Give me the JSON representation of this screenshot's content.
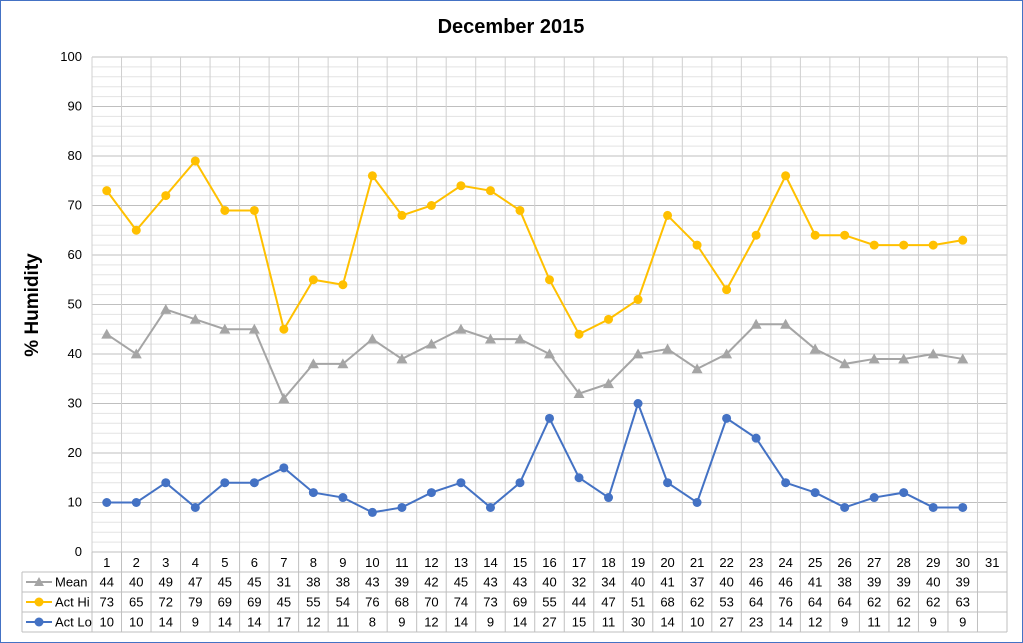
{
  "chart_data": {
    "type": "line",
    "title": "December 2015",
    "xlabel": "",
    "ylabel": "% Humidity",
    "ylim": [
      0,
      100
    ],
    "y_major_ticks": [
      0,
      10,
      20,
      30,
      40,
      50,
      60,
      70,
      80,
      90,
      100
    ],
    "y_minor_step": 2,
    "grid": true,
    "legend_position": "data-table",
    "categories": [
      "1",
      "2",
      "3",
      "4",
      "5",
      "6",
      "7",
      "8",
      "9",
      "10",
      "11",
      "12",
      "13",
      "14",
      "15",
      "16",
      "17",
      "18",
      "19",
      "20",
      "21",
      "22",
      "23",
      "24",
      "25",
      "26",
      "27",
      "28",
      "29",
      "30",
      "31"
    ],
    "series": [
      {
        "name": "Mean",
        "color": "#a5a5a5",
        "marker": "triangle",
        "values": [
          44,
          40,
          49,
          47,
          45,
          45,
          31,
          38,
          38,
          43,
          39,
          42,
          45,
          43,
          43,
          40,
          32,
          34,
          40,
          41,
          37,
          40,
          46,
          46,
          41,
          38,
          39,
          39,
          40,
          39,
          null
        ]
      },
      {
        "name": "Act Hi",
        "color": "#ffc000",
        "marker": "circle",
        "values": [
          73,
          65,
          72,
          79,
          69,
          69,
          45,
          55,
          54,
          76,
          68,
          70,
          74,
          73,
          69,
          55,
          44,
          47,
          51,
          68,
          62,
          53,
          64,
          76,
          64,
          64,
          62,
          62,
          62,
          63,
          null
        ]
      },
      {
        "name": "Act Lo",
        "color": "#4472c4",
        "marker": "circle",
        "values": [
          10,
          10,
          14,
          9,
          14,
          14,
          17,
          12,
          11,
          8,
          9,
          12,
          14,
          9,
          14,
          27,
          15,
          11,
          30,
          14,
          10,
          27,
          23,
          14,
          12,
          9,
          11,
          12,
          9,
          9,
          null
        ]
      }
    ]
  }
}
